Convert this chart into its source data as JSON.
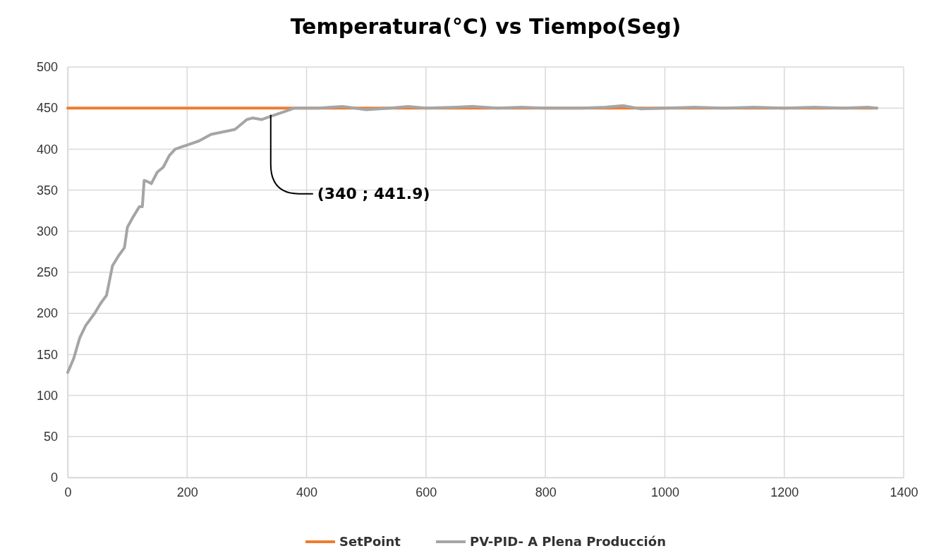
{
  "chart_data": {
    "type": "line",
    "title": "Temperatura(°C) vs Tiempo(Seg)",
    "xlim": [
      0,
      1400
    ],
    "xticks": [
      0,
      200,
      400,
      600,
      800,
      1000,
      1200,
      1400
    ],
    "ylim": [
      0,
      500
    ],
    "yticks": [
      0,
      50,
      100,
      150,
      200,
      250,
      300,
      350,
      400,
      450,
      500
    ],
    "grid": true,
    "legend": "bottom",
    "marker": "none",
    "line_style": "solid",
    "series": [
      {
        "name": "SetPoint",
        "color": "#ed7d31",
        "x": [
          0,
          1355
        ],
        "values": [
          450,
          450
        ]
      },
      {
        "name": "PV-PID- A Plena Producción",
        "color": "#a5a5a5",
        "x": [
          0,
          10,
          20,
          30,
          45,
          55,
          65,
          70,
          75,
          85,
          95,
          100,
          110,
          120,
          125,
          128,
          135,
          140,
          150,
          160,
          170,
          180,
          200,
          220,
          240,
          260,
          280,
          300,
          310,
          325,
          340,
          360,
          380,
          420,
          440,
          460,
          470,
          500,
          540,
          570,
          600,
          650,
          680,
          720,
          760,
          800,
          860,
          900,
          930,
          960,
          1000,
          1050,
          1100,
          1150,
          1200,
          1250,
          1300,
          1340,
          1355
        ],
        "values": [
          128,
          145,
          170,
          185,
          200,
          212,
          222,
          240,
          258,
          270,
          280,
          305,
          318,
          330,
          330,
          362,
          360,
          358,
          372,
          378,
          392,
          400,
          405,
          410,
          418,
          421,
          424,
          436,
          438,
          436,
          440,
          445,
          450,
          450,
          451,
          452,
          451,
          448,
          450,
          452,
          450,
          451,
          452,
          450,
          451,
          450,
          450,
          451,
          453,
          449,
          450,
          451,
          450,
          451,
          450,
          451,
          450,
          451,
          450
        ]
      }
    ],
    "annotations": [
      {
        "text": "(340 ; 441.9)",
        "x": 340,
        "y": 441.9
      }
    ]
  }
}
